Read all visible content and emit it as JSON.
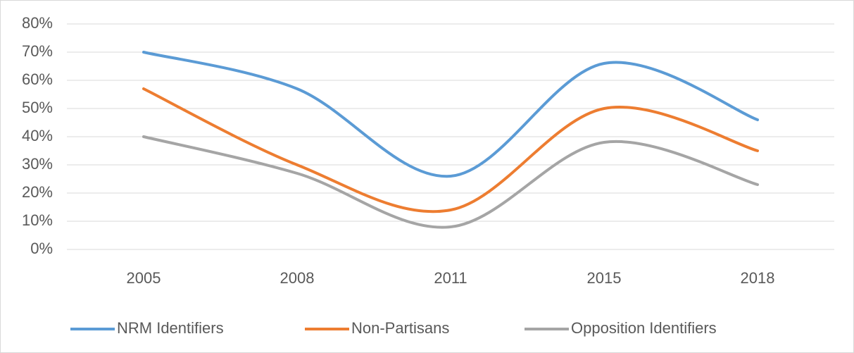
{
  "chart_data": {
    "type": "line",
    "categories": [
      "2005",
      "2008",
      "2011",
      "2015",
      "2018"
    ],
    "series": [
      {
        "name": "NRM Identifiers",
        "color": "#5b9bd5",
        "values": [
          70,
          57,
          26,
          66,
          46
        ]
      },
      {
        "name": "Non-Partisans",
        "color": "#ed7d31",
        "values": [
          57,
          30,
          14,
          50,
          35
        ]
      },
      {
        "name": "Opposition Identifiers",
        "color": "#a5a5a5",
        "values": [
          40,
          27,
          8,
          38,
          23
        ]
      }
    ],
    "ylim": [
      0,
      80
    ],
    "yticks": [
      {
        "value": 0,
        "label": "0%"
      },
      {
        "value": 10,
        "label": "10%"
      },
      {
        "value": 20,
        "label": "20%"
      },
      {
        "value": 30,
        "label": "30%"
      },
      {
        "value": 40,
        "label": "40%"
      },
      {
        "value": 50,
        "label": "50%"
      },
      {
        "value": 60,
        "label": "60%"
      },
      {
        "value": 70,
        "label": "70%"
      },
      {
        "value": 80,
        "label": "80%"
      }
    ],
    "grid": true,
    "smooth": true,
    "legend": "bottom"
  }
}
